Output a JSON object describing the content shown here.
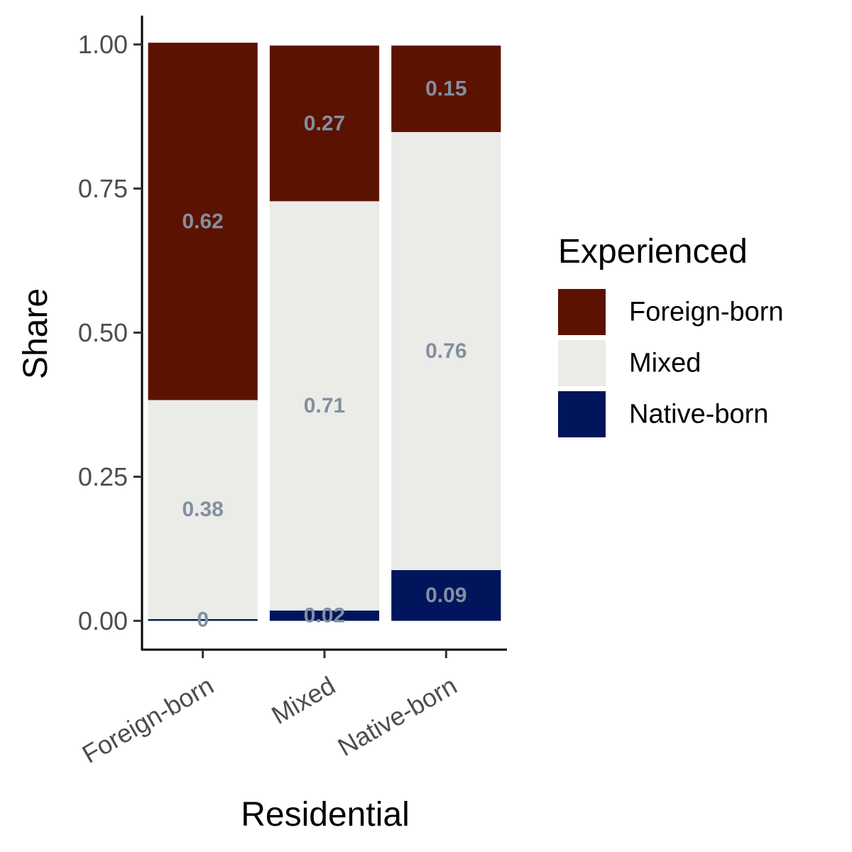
{
  "chart_data": {
    "type": "bar",
    "stacked": true,
    "categories": [
      "Foreign-born",
      "Mixed",
      "Native-born"
    ],
    "series": [
      {
        "name": "Foreign-born",
        "values": [
          0.62,
          0.27,
          0.15
        ],
        "labels": [
          "0.62",
          "0.27",
          "0.15"
        ],
        "color": "#5c1200"
      },
      {
        "name": "Mixed",
        "values": [
          0.38,
          0.71,
          0.76
        ],
        "labels": [
          "0.38",
          "0.71",
          "0.76"
        ],
        "color": "#ebebe8"
      },
      {
        "name": "Native-born",
        "values": [
          0.003,
          0.018,
          0.088
        ],
        "labels": [
          "0",
          "0.02",
          "0.09"
        ],
        "color": "#00155c"
      }
    ],
    "xlabel": "Residential",
    "ylabel": "Share",
    "ylim": [
      -0.05,
      1.05
    ],
    "yticks": [
      0,
      0.25,
      0.5,
      0.75,
      1
    ],
    "ytick_labels": [
      "0.00",
      "0.25",
      "0.50",
      "0.75",
      "1.00"
    ],
    "legend": {
      "title": "Experienced",
      "position": "right"
    },
    "grid": false,
    "label_color": "#8290a0"
  }
}
